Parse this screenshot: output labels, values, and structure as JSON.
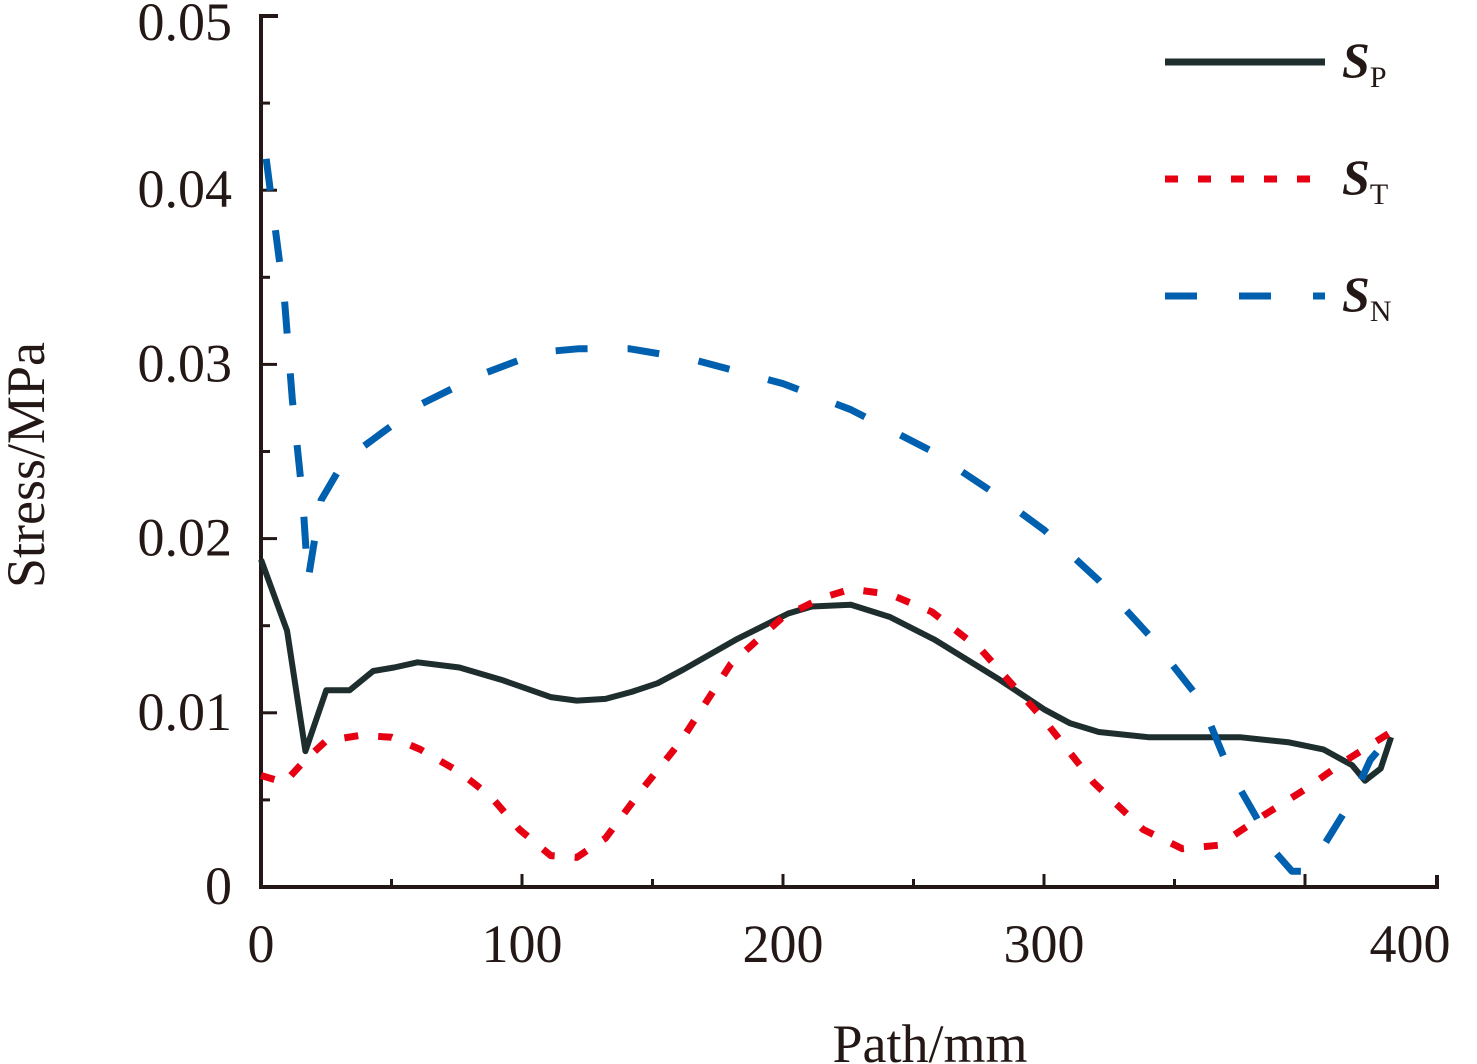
{
  "chart_data": {
    "type": "line",
    "title": "",
    "xlabel": "Path/mm",
    "ylabel": "Stress/MPa",
    "xlim": [
      0,
      450
    ],
    "ylim": [
      0,
      0.05
    ],
    "xticks": [
      "0",
      "100",
      "200",
      "300",
      "400"
    ],
    "yticks": [
      "0",
      "0.01",
      "0.02",
      "0.03",
      "0.04",
      "0.05"
    ],
    "grid": false,
    "legend_position": "top-right",
    "series": [
      {
        "name": "S",
        "sub": "P",
        "color": "#1e2d2d",
        "style": "solid",
        "x": [
          0,
          10,
          17,
          25,
          34,
          43,
          51,
          60,
          76,
          92,
          111,
          121,
          132,
          142,
          152,
          162,
          182,
          202,
          211,
          226,
          241,
          258,
          283,
          300,
          310,
          321,
          340,
          360,
          375,
          394,
          407,
          418,
          423,
          429,
          433
        ],
        "y": [
          0.0188,
          0.0147,
          0.0078,
          0.0113,
          0.0113,
          0.0124,
          0.0126,
          0.0129,
          0.0126,
          0.0119,
          0.0109,
          0.0107,
          0.0108,
          0.0112,
          0.0117,
          0.0125,
          0.0142,
          0.0157,
          0.0161,
          0.0162,
          0.0155,
          0.0142,
          0.0119,
          0.0102,
          0.0094,
          0.0089,
          0.0086,
          0.0086,
          0.0086,
          0.0083,
          0.0079,
          0.007,
          0.0061,
          0.0068,
          0.0086
        ]
      },
      {
        "name": "S",
        "sub": "T",
        "color": "#e60012",
        "style": "dotted",
        "x": [
          0,
          9,
          17,
          25,
          38,
          50,
          61,
          76,
          88,
          99,
          111,
          121,
          132,
          146,
          161,
          180,
          200,
          215,
          226,
          241,
          257,
          276,
          300,
          319,
          338,
          353,
          367,
          384,
          400,
          415,
          433
        ],
        "y": [
          0.0064,
          0.006,
          0.0073,
          0.0084,
          0.0087,
          0.0086,
          0.0079,
          0.0066,
          0.0052,
          0.0033,
          0.0018,
          0.0017,
          0.0028,
          0.0056,
          0.0084,
          0.0128,
          0.0155,
          0.0166,
          0.0171,
          0.0168,
          0.0158,
          0.0136,
          0.0096,
          0.006,
          0.0033,
          0.0022,
          0.0024,
          0.0041,
          0.0056,
          0.0072,
          0.0089
        ]
      },
      {
        "name": "S",
        "sub": "N",
        "color": "#0060b0",
        "style": "dashed",
        "x": [
          2,
          5,
          9,
          12,
          16,
          18,
          23,
          32,
          43,
          61,
          84,
          107,
          122,
          141,
          165,
          200,
          226,
          256,
          279,
          300,
          321,
          340,
          360,
          371,
          381,
          388,
          395,
          400,
          406,
          418,
          425,
          433
        ],
        "y": [
          0.0418,
          0.0383,
          0.0337,
          0.028,
          0.0222,
          0.0176,
          0.0222,
          0.0245,
          0.0257,
          0.0277,
          0.0294,
          0.0307,
          0.0309,
          0.0309,
          0.0303,
          0.0289,
          0.0274,
          0.0251,
          0.0228,
          0.0205,
          0.0176,
          0.0145,
          0.0107,
          0.0067,
          0.0041,
          0.0021,
          0.0009,
          0.0009,
          0.0021,
          0.005,
          0.0073,
          0.0087
        ]
      }
    ]
  }
}
